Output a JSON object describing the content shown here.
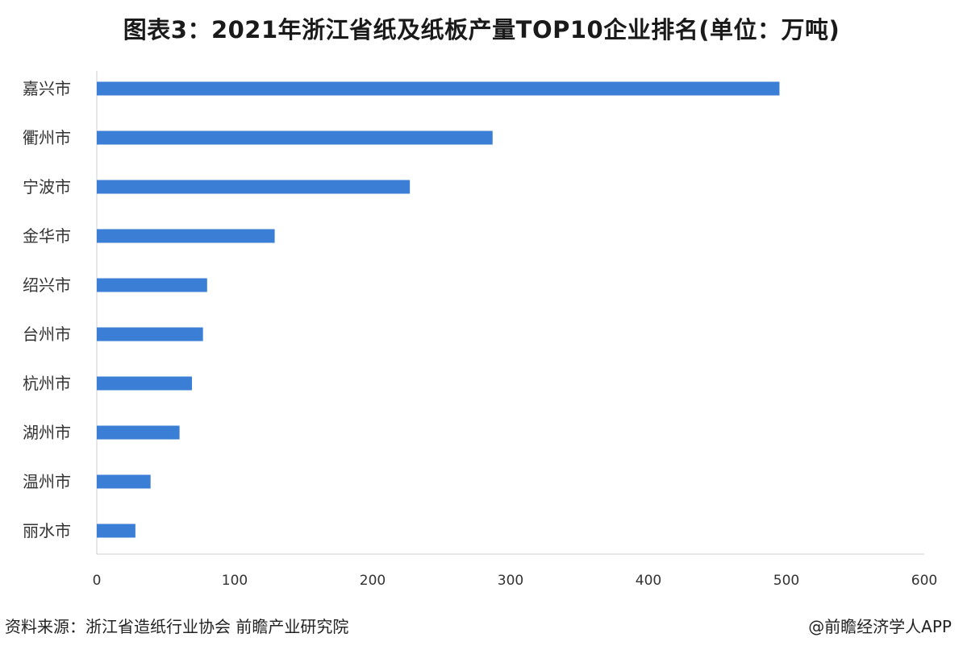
{
  "chart_data": {
    "type": "bar",
    "orientation": "horizontal",
    "title": "图表3：2021年浙江省纸及纸板产量TOP10企业排名(单位：万吨)",
    "categories": [
      "嘉兴市",
      "衢州市",
      "宁波市",
      "金华市",
      "绍兴市",
      "台州市",
      "杭州市",
      "湖州市",
      "温州市",
      "丽水市"
    ],
    "values": [
      495,
      287,
      227,
      129,
      80,
      77,
      69,
      60,
      39,
      28
    ],
    "xlim": [
      0,
      600
    ],
    "xticks": [
      "0",
      "100",
      "200",
      "300",
      "400",
      "500",
      "600"
    ],
    "xlabel": "",
    "ylabel": "",
    "grid": false,
    "bar_color": "#3a7fd5"
  },
  "footer": {
    "source": "资料来源：浙江省造纸行业协会 前瞻产业研究院",
    "brand": "@前瞻经济学人APP"
  }
}
